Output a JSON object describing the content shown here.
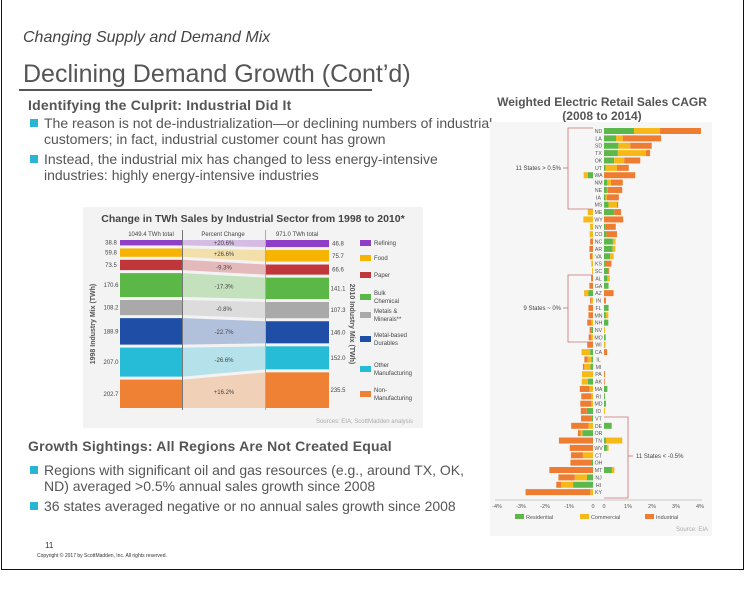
{
  "slide": {
    "subtitle": "Changing Supply and Demand Mix",
    "title": "Declining Demand Growth (Cont’d)",
    "section1": {
      "heading": "Identifying the Culprit: Industrial Did It",
      "bullets": [
        "The reason is not de-industrialization—or declining numbers of industrial customers; in fact, industrial customer count has grown",
        "Instead, the industrial mix has changed to less energy-intensive industries: highly energy-intensive industries"
      ]
    },
    "section2": {
      "heading": "Growth Sightings: All Regions Are Not Created Equal",
      "bullets": [
        "Regions with significant oil and gas resources (e.g., around TX, OK, ND) averaged >0.5% annual sales growth since 2008",
        "36 states averaged negative or no annual sales growth since 2008"
      ]
    },
    "page_number": "11",
    "copyright": "Copyright © 2017 by ScottMadden, Inc. All rights reserved.",
    "accent_color": "#29b6d5"
  },
  "chart_data": [
    {
      "type": "bar",
      "title": "Change in TWh Sales by Industrial Sector from 1998 to 2010*",
      "left_header": "1049.4 TWh total",
      "middle_header": "Percent Change",
      "right_header": "971.0 TWh total",
      "ylabel_left": "1998 Industry Mix (TWh)",
      "ylabel_right": "2010 Industry Mix (TWh)",
      "source": "Sources: EIA; ScottMadden analysis",
      "categories": [
        "Refining",
        "Food",
        "Paper",
        "Bulk Chemical",
        "Metals & Minerals**",
        "Metal-based Durables",
        "Other Manufacturing",
        "Non-Manufacturing"
      ],
      "legend_lines": [
        [
          "Refining"
        ],
        [
          "Food"
        ],
        [
          "Paper"
        ],
        [
          "Bulk",
          "Chemical"
        ],
        [
          "Metals &",
          "Minerals**"
        ],
        [
          "Metal-based",
          "Durables"
        ],
        [
          "Other",
          "Manufacturing"
        ],
        [
          "Non-",
          "Manufacturing"
        ]
      ],
      "values_1998": [
        "38.8",
        "59.8",
        "73.5",
        "170.6",
        "108.2",
        "188.9",
        "207.0",
        "202.7"
      ],
      "values_2010": [
        "46.8",
        "75.7",
        "66.6",
        "141.1",
        "107.3",
        "146.0",
        "152.0",
        "235.5"
      ],
      "percent_change": [
        "+20.6%",
        "+26.6%",
        "-9.3%",
        "-17.3%",
        "-0.8%",
        "-22.7%",
        "-26.6%",
        "+16.2%"
      ],
      "colors": [
        "#8e3fc6",
        "#f6b400",
        "#c0363a",
        "#5bb846",
        "#a9a9a9",
        "#1e4ea6",
        "#26bbd6",
        "#ee8133"
      ]
    },
    {
      "type": "bar",
      "orientation": "horizontal-stacked",
      "title": "Weighted Electric Retail Sales CAGR",
      "subtitle": "(2008 to 2014)",
      "source": "Source: EIA",
      "xlim": [
        -4,
        4
      ],
      "x_ticks": [
        "-4%",
        "-3%",
        "-2%",
        "-1%",
        "0",
        "0",
        "1%",
        "2%",
        "3%",
        "4%"
      ],
      "series_names": [
        "Residential",
        "Commercial",
        "Industrial"
      ],
      "colors": [
        "#5cb84a",
        "#f7b917",
        "#ee7d31"
      ],
      "annotations": [
        "11 States > 0.5%",
        "9 States ~ 0%",
        "11 States < -0.5%"
      ],
      "states": [
        "ND",
        "LA",
        "SD",
        "TX",
        "OK",
        "UT",
        "WA",
        "NM",
        "NE",
        "IA",
        "MS",
        "ME",
        "WY",
        "NY",
        "CO",
        "NC",
        "AR",
        "VA",
        "KS",
        "SC",
        "AL",
        "GA",
        "AZ",
        "IN",
        "FL",
        "MN",
        "NH",
        "NV",
        "MO",
        "WI",
        "CA",
        "IL",
        "MI",
        "PA",
        "AK",
        "MA",
        "RI",
        "MD",
        "ID",
        "VT",
        "DE",
        "OR",
        "TN",
        "WV",
        "CT",
        "OH",
        "MT",
        "NJ",
        "HI",
        "KY"
      ],
      "positive": [
        [
          1.25,
          1.08,
          1.71
        ],
        [
          0.5,
          0.28,
          1.6
        ],
        [
          0.6,
          0.49,
          0.9
        ],
        [
          0.58,
          1.17,
          0.17
        ],
        [
          0.42,
          0.42,
          0.67
        ],
        [
          0.07,
          0.47,
          0.49
        ],
        [
          0,
          0,
          1.3
        ],
        [
          0.14,
          0.15,
          0.49
        ],
        [
          0.12,
          0.03,
          0.61
        ],
        [
          0.07,
          0.05,
          0.5
        ],
        [
          0.19,
          0.35,
          0.05
        ],
        [
          0.43,
          0,
          0.28
        ],
        [
          0,
          0,
          0.8
        ],
        [
          0.07,
          0,
          0.42
        ],
        [
          0.1,
          0,
          0.44
        ],
        [
          0.37,
          0.11,
          0
        ],
        [
          0.36,
          0.11,
          0
        ],
        [
          0.26,
          0.14,
          0
        ],
        [
          0.04,
          0,
          0.27
        ],
        [
          0.18,
          0,
          0.04
        ],
        [
          0.14,
          0.1,
          0
        ],
        [
          0.19,
          0,
          0
        ],
        [
          0,
          0,
          0.4
        ],
        [
          0,
          0,
          0.08
        ],
        [
          0.19,
          0,
          0
        ],
        [
          0.08,
          0.1,
          0
        ],
        [
          0.18,
          0,
          0
        ],
        [
          0,
          0.04,
          0
        ],
        [
          0.07,
          0,
          0
        ],
        [
          0,
          0.06,
          0
        ],
        [
          0,
          0,
          0.13
        ],
        [
          0,
          0,
          0
        ],
        [
          0,
          0,
          0
        ],
        [
          0,
          0,
          0.04
        ],
        [
          0,
          0,
          0.03
        ],
        [
          0.14,
          0,
          0
        ],
        [
          0.04,
          0,
          0
        ],
        [
          0.08,
          0,
          0
        ],
        [
          0,
          0.04,
          0
        ],
        [
          0,
          0,
          0
        ],
        [
          0.32,
          0,
          0
        ],
        [
          0,
          0,
          0
        ],
        [
          0.08,
          0.68,
          0
        ],
        [
          0.12,
          0.07,
          0
        ],
        [
          0,
          0,
          0
        ],
        [
          0,
          0,
          0
        ],
        [
          0.33,
          0.1,
          0
        ],
        [
          0,
          0,
          0
        ],
        [
          0,
          0,
          0
        ],
        [
          0,
          0,
          0
        ]
      ],
      "negative": [
        [
          0,
          0,
          0
        ],
        [
          0,
          0,
          0
        ],
        [
          0,
          0,
          0
        ],
        [
          0,
          0,
          0
        ],
        [
          0,
          0,
          0
        ],
        [
          0,
          0,
          0
        ],
        [
          -0.22,
          -0.17,
          0
        ],
        [
          0,
          0,
          0
        ],
        [
          0,
          0,
          0
        ],
        [
          0,
          0,
          0
        ],
        [
          0,
          0,
          0
        ],
        [
          0,
          -0.22,
          0
        ],
        [
          0,
          -0.4,
          0
        ],
        [
          0,
          -0.12,
          0
        ],
        [
          0,
          -0.14,
          0
        ],
        [
          0,
          0,
          -0.12
        ],
        [
          0,
          0,
          -0.15
        ],
        [
          0,
          -0.03,
          -0.1
        ],
        [
          0,
          -0.07,
          0
        ],
        [
          0,
          -0.04,
          0
        ],
        [
          0,
          0,
          -0.08
        ],
        [
          0,
          0,
          -0.15
        ],
        [
          -0.19,
          -0.18,
          0
        ],
        [
          0,
          -0.07,
          -0.05
        ],
        [
          0,
          0,
          -0.19
        ],
        [
          0,
          0,
          -0.19
        ],
        [
          0,
          -0.07,
          -0.17
        ],
        [
          -0.07,
          0,
          -0.07
        ],
        [
          0,
          -0.07,
          -0.11
        ],
        [
          0,
          0,
          -0.24
        ],
        [
          -0.12,
          -0.36,
          0
        ],
        [
          -0.07,
          -0.15,
          -0.14
        ],
        [
          -0.11,
          -0.25,
          -0.06
        ],
        [
          0,
          -0.46,
          0
        ],
        [
          -0.21,
          -0.26,
          0
        ],
        [
          0,
          -0.15,
          -0.4
        ],
        [
          0,
          -0.07,
          -0.42
        ],
        [
          0,
          -0.07,
          -0.46
        ],
        [
          -0.26,
          0,
          -0.25
        ],
        [
          -0.07,
          0,
          -0.43
        ],
        [
          0,
          -0.19,
          -0.72
        ],
        [
          -0.44,
          -0.08,
          -0.11
        ],
        [
          0,
          0,
          -1.42
        ],
        [
          0,
          0,
          -0.97
        ],
        [
          0,
          -0.42,
          -0.5
        ],
        [
          -0.08,
          0,
          -0.86
        ],
        [
          0,
          0,
          -1.82
        ],
        [
          -0.25,
          -0.51,
          -0.68
        ],
        [
          -0.83,
          -0.49,
          -0.21
        ],
        [
          0,
          -0.11,
          -2.7
        ]
      ]
    }
  ]
}
